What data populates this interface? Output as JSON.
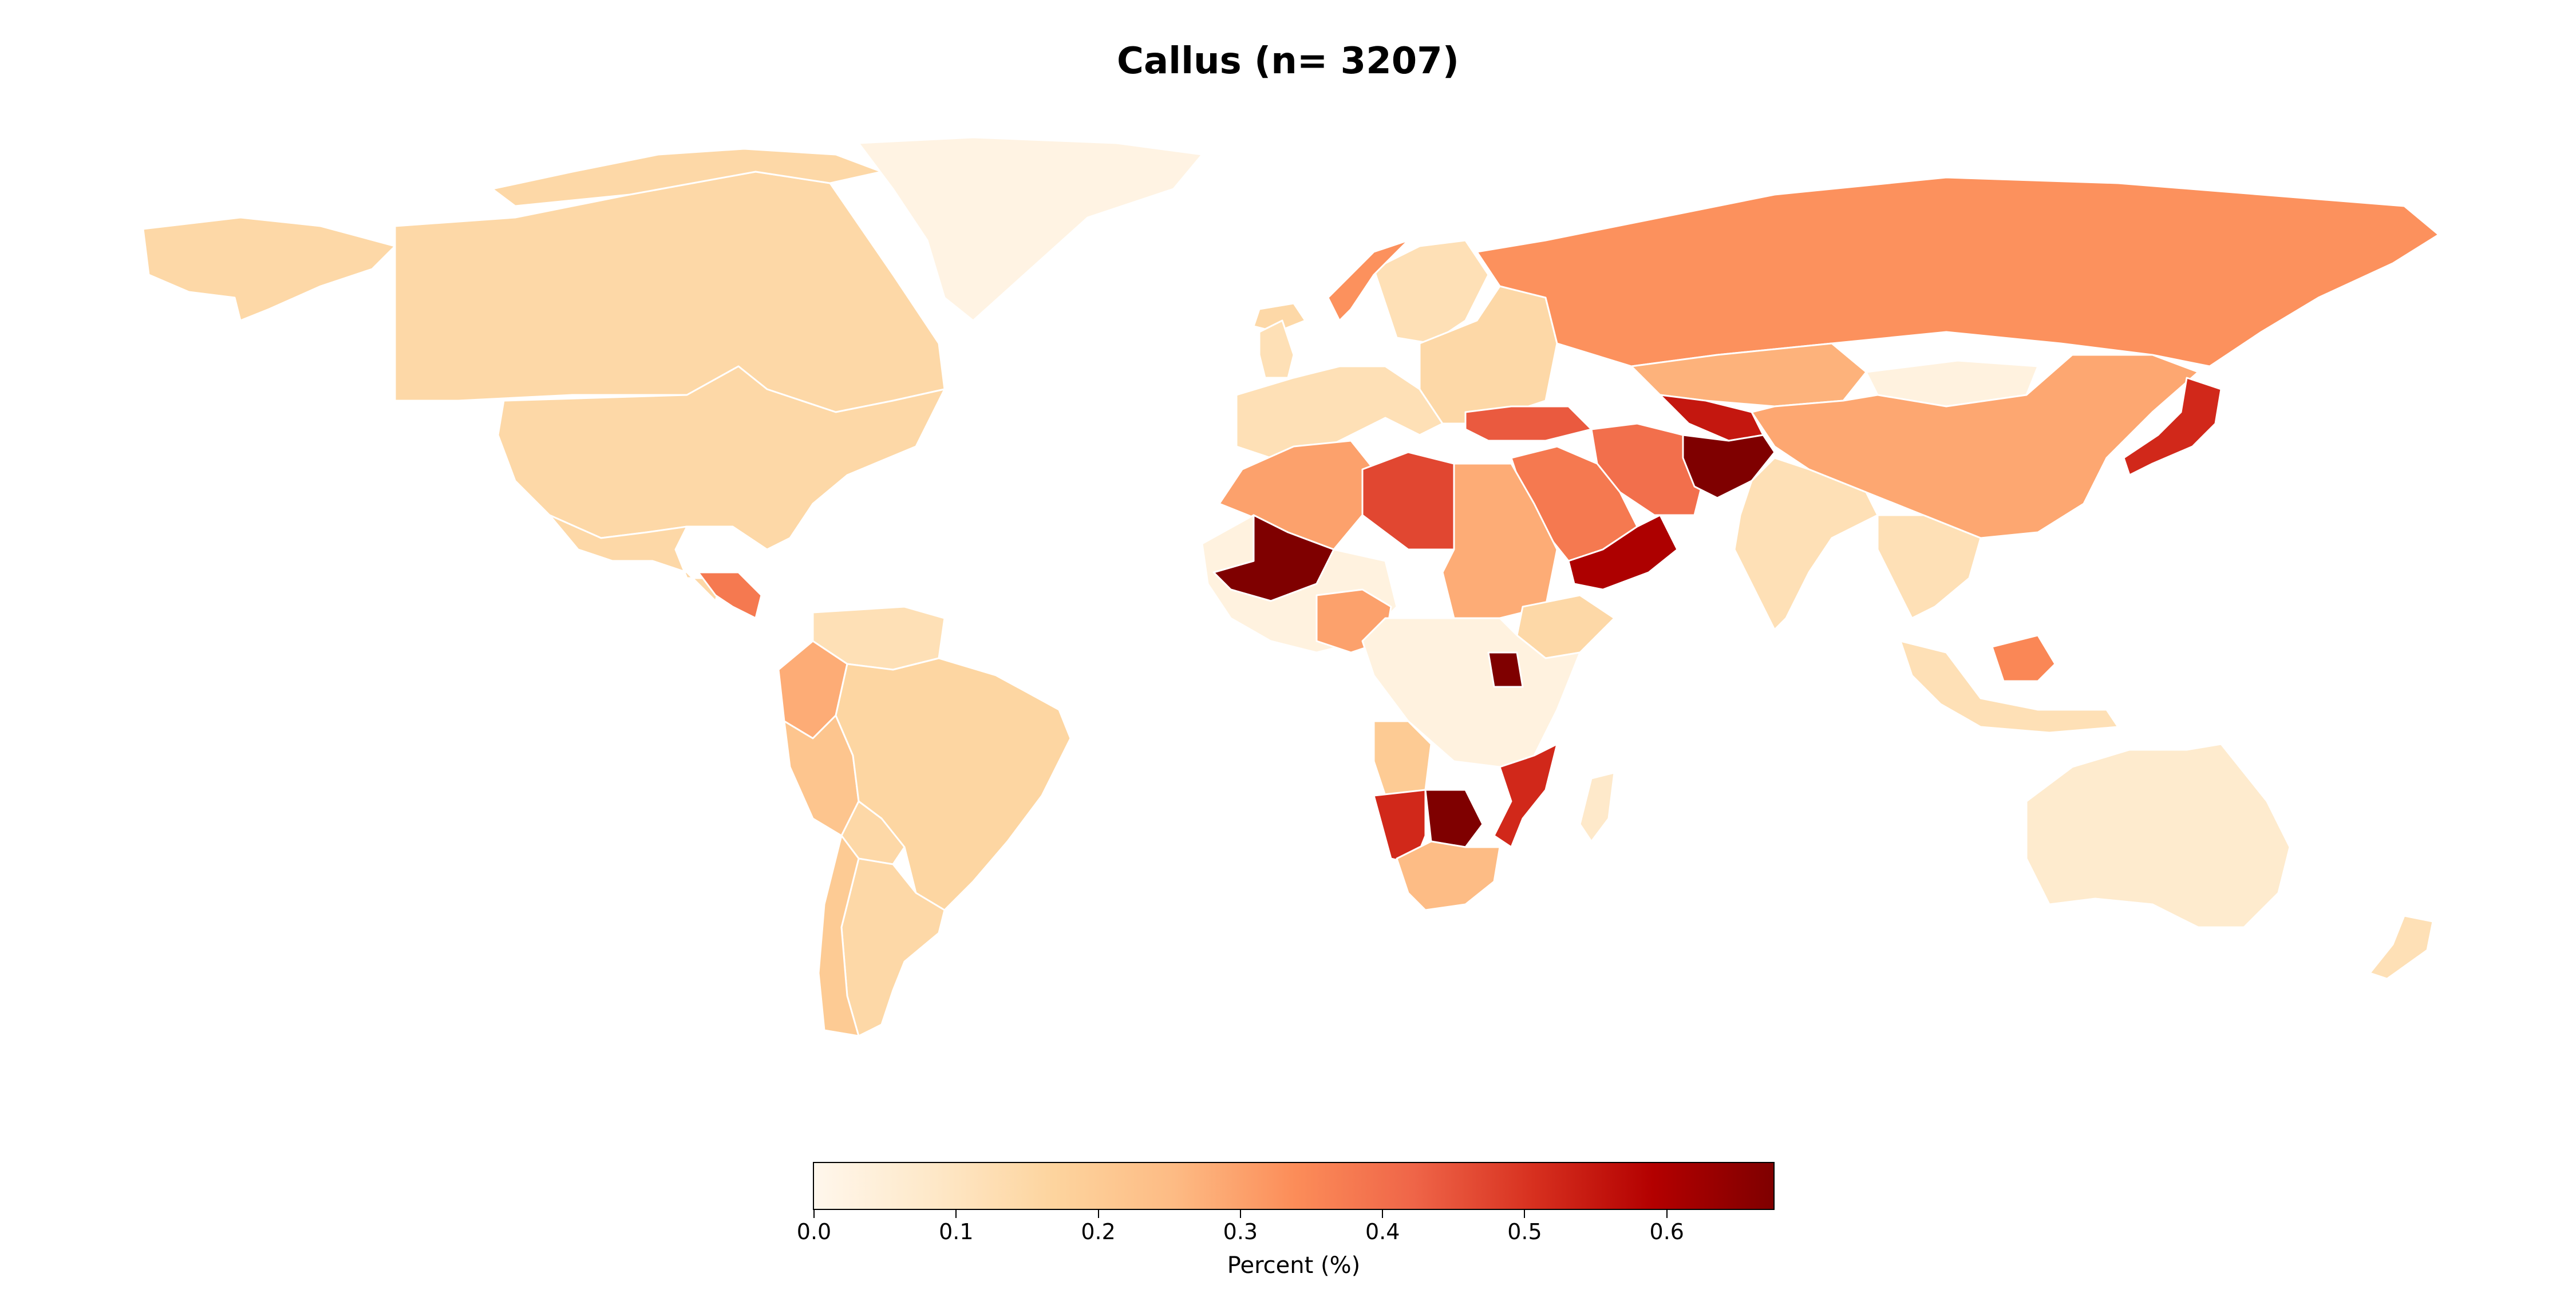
{
  "title": "Callus (n= 3207)",
  "colorbar": {
    "label": "Percent (%)",
    "min": 0.0,
    "max": 0.675,
    "ticks": [
      "0.0",
      "0.1",
      "0.2",
      "0.3",
      "0.4",
      "0.5",
      "0.6"
    ],
    "colormap": "OrRd",
    "stops": [
      "#fff7ec",
      "#fee8c8",
      "#fdd49e",
      "#fdbb84",
      "#fc8d59",
      "#ef6548",
      "#d7301f",
      "#b30000",
      "#7f0000"
    ]
  },
  "regions": [
    {
      "id": "canada",
      "value": 0.15
    },
    {
      "id": "usa",
      "value": 0.15
    },
    {
      "id": "alaska",
      "value": 0.15
    },
    {
      "id": "mexico",
      "value": 0.15
    },
    {
      "id": "greenland",
      "value": 0.02
    },
    {
      "id": "central-america",
      "value": 0.38
    },
    {
      "id": "colombia",
      "value": 0.28
    },
    {
      "id": "venezuela",
      "value": 0.12
    },
    {
      "id": "peru",
      "value": 0.22
    },
    {
      "id": "brazil",
      "value": 0.16
    },
    {
      "id": "bolivia",
      "value": 0.15
    },
    {
      "id": "argentina",
      "value": 0.15
    },
    {
      "id": "chile",
      "value": 0.2
    },
    {
      "id": "iceland",
      "value": 0.15
    },
    {
      "id": "uk",
      "value": 0.12
    },
    {
      "id": "western-europe",
      "value": 0.12
    },
    {
      "id": "scandinavia",
      "value": 0.12
    },
    {
      "id": "norway-coast",
      "value": 0.33
    },
    {
      "id": "eastern-europe",
      "value": 0.15
    },
    {
      "id": "russia",
      "value": 0.33
    },
    {
      "id": "kazakhstan",
      "value": 0.27
    },
    {
      "id": "mongolia",
      "value": 0.03
    },
    {
      "id": "china",
      "value": 0.29
    },
    {
      "id": "japan",
      "value": 0.52
    },
    {
      "id": "turkey",
      "value": 0.44
    },
    {
      "id": "iran",
      "value": 0.4
    },
    {
      "id": "afghanistan",
      "value": 0.68
    },
    {
      "id": "central-asia",
      "value": 0.55
    },
    {
      "id": "saudi-arabia",
      "value": 0.38
    },
    {
      "id": "yemen-oman",
      "value": 0.6
    },
    {
      "id": "india",
      "value": 0.12
    },
    {
      "id": "southeast-asia",
      "value": 0.12
    },
    {
      "id": "indonesia",
      "value": 0.12
    },
    {
      "id": "borneo",
      "value": 0.35
    },
    {
      "id": "australia",
      "value": 0.07
    },
    {
      "id": "new-zealand",
      "value": 0.12
    },
    {
      "id": "morocco-algeria",
      "value": 0.3
    },
    {
      "id": "libya",
      "value": 0.47
    },
    {
      "id": "egypt-sudan",
      "value": 0.28
    },
    {
      "id": "mali",
      "value": 0.68
    },
    {
      "id": "west-africa",
      "value": 0.03
    },
    {
      "id": "nigeria",
      "value": 0.3
    },
    {
      "id": "ethiopia",
      "value": 0.15
    },
    {
      "id": "central-africa",
      "value": 0.03
    },
    {
      "id": "uganda",
      "value": 0.68
    },
    {
      "id": "angola",
      "value": 0.2
    },
    {
      "id": "namibia",
      "value": 0.52
    },
    {
      "id": "botswana",
      "value": 0.68
    },
    {
      "id": "south-africa",
      "value": 0.25
    },
    {
      "id": "mozambique",
      "value": 0.52
    },
    {
      "id": "madagascar",
      "value": 0.08
    }
  ]
}
